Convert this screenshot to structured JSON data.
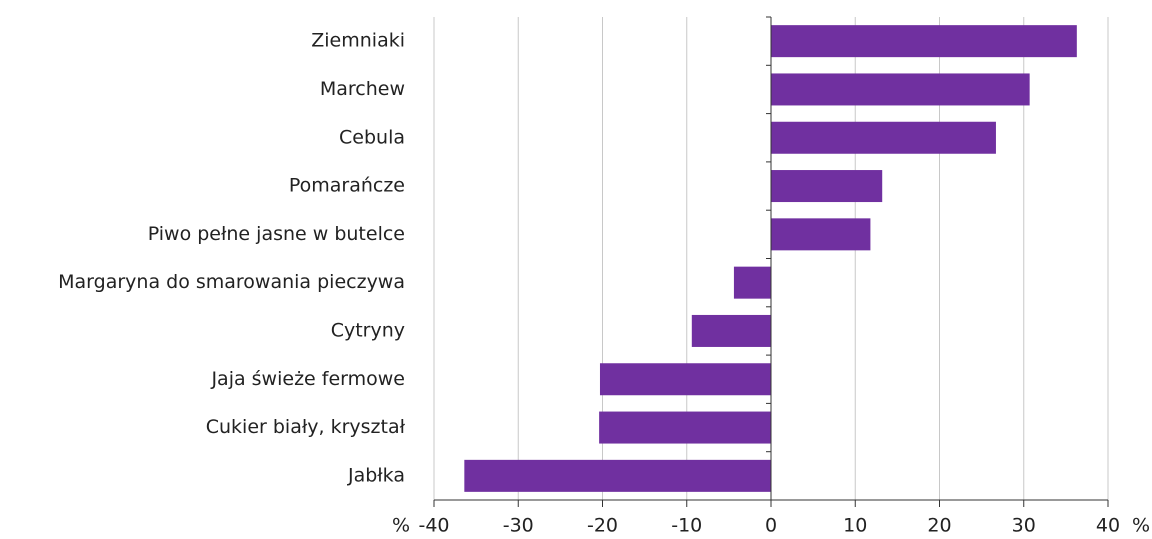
{
  "chart_data": {
    "type": "barh",
    "categories": [
      "Ziemniaki",
      "Marchew",
      "Cebula",
      "Pomarańcze",
      "Piwo pełne jasne w butelce",
      "Margaryna do smarowania pieczywa",
      "Cytryny",
      "Jaja świeże fermowe",
      "Cukier biały, kryształ",
      "Jabłka"
    ],
    "values": [
      36.3,
      30.7,
      26.7,
      13.2,
      11.8,
      -4.4,
      -9.4,
      -20.3,
      -20.4,
      -36.4
    ],
    "color": "#7030a0",
    "xlim": [
      -40,
      40
    ],
    "xticks": [
      -40,
      -30,
      -20,
      -10,
      0,
      10,
      20,
      30,
      40
    ],
    "xlabel": "%",
    "grid": true
  }
}
